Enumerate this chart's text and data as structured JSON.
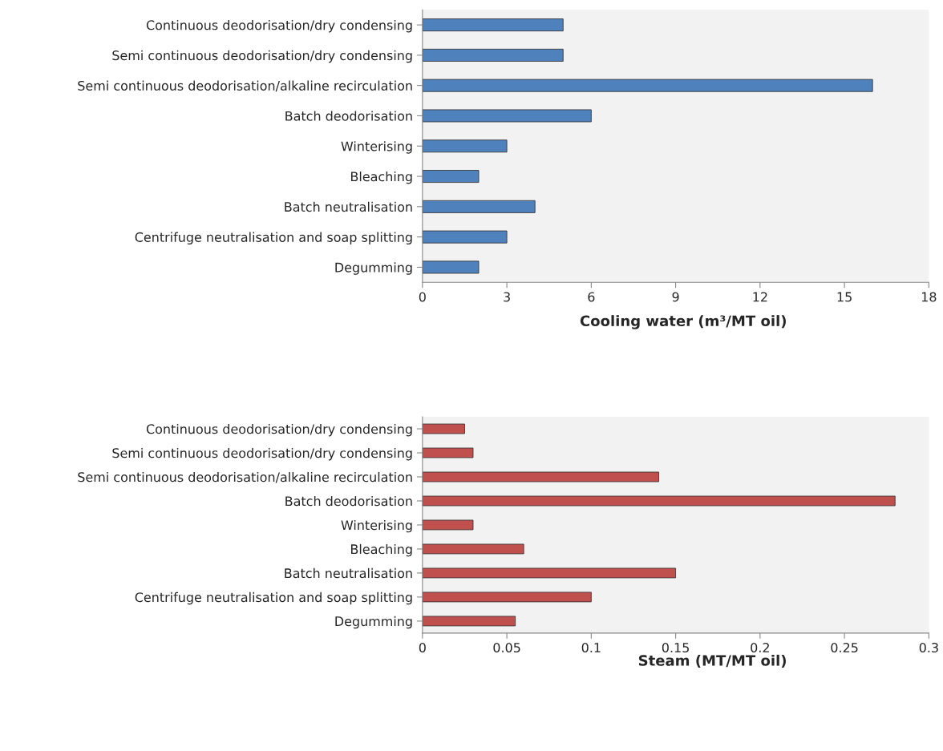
{
  "chart_data": [
    {
      "type": "bar",
      "orientation": "horizontal",
      "xlabel": "Cooling water (m³/MT oil)",
      "categories": [
        "Continuous deodorisation/dry condensing",
        "Semi continuous deodorisation/dry condensing",
        "Semi continuous deodorisation/alkaline recirculation",
        "Batch deodorisation",
        "Winterising",
        "Bleaching",
        "Batch neutralisation",
        "Centrifuge neutralisation and soap splitting",
        "Degumming"
      ],
      "values": [
        5,
        5,
        16,
        6,
        3,
        2,
        4,
        3,
        2
      ],
      "color": "#4f81bd",
      "xlim": [
        0,
        18
      ],
      "xticks": [
        0,
        3,
        6,
        9,
        12,
        15,
        18
      ],
      "grid": false
    },
    {
      "type": "bar",
      "orientation": "horizontal",
      "xlabel": "Steam (MT/MT oil)",
      "categories": [
        "Continuous deodorisation/dry condensing",
        "Semi continuous deodorisation/dry condensing",
        "Semi continuous deodorisation/alkaline recirculation",
        "Batch deodorisation",
        "Winterising",
        "Bleaching",
        "Batch neutralisation",
        "Centrifuge neutralisation and soap splitting",
        "Degumming"
      ],
      "values": [
        0.025,
        0.03,
        0.14,
        0.28,
        0.03,
        0.06,
        0.15,
        0.1,
        0.055
      ],
      "color": "#c0504d",
      "xlim": [
        0,
        0.3
      ],
      "xticks": [
        0,
        {
          "value": 0.05,
          "label": "0.05"
        },
        {
          "value": 0.1,
          "label": "0.1"
        },
        {
          "value": 0.15,
          "label": "0.15"
        },
        {
          "value": 0.2,
          "label": "0.2"
        },
        {
          "value": 0.25,
          "label": "0.25"
        },
        {
          "value": 0.3,
          "label": "0.3"
        }
      ],
      "grid": false
    }
  ]
}
